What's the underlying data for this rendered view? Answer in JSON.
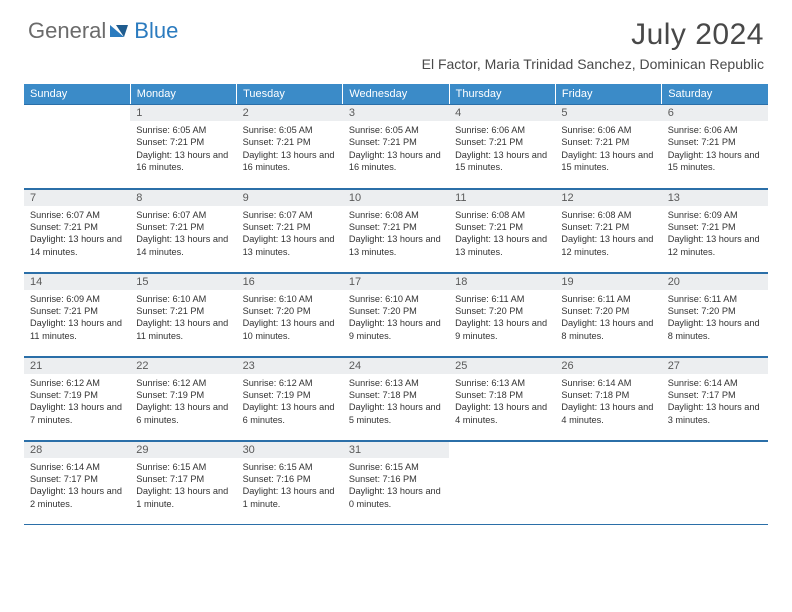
{
  "logo": {
    "text_general": "General",
    "text_blue": "Blue"
  },
  "title": "July 2024",
  "location": "El Factor, Maria Trinidad Sanchez, Dominican Republic",
  "colors": {
    "header_bg": "#3b8bc8",
    "header_text": "#ffffff",
    "daynum_bg": "#eceef0",
    "border": "#2b6fa8",
    "body_text": "#333333",
    "logo_gray": "#6b6b6b",
    "logo_blue": "#2b7bbf",
    "title_color": "#484848"
  },
  "typography": {
    "title_fontsize": 30,
    "location_fontsize": 14,
    "header_fontsize": 11,
    "daynum_fontsize": 11,
    "content_fontsize": 9.2
  },
  "day_headers": [
    "Sunday",
    "Monday",
    "Tuesday",
    "Wednesday",
    "Thursday",
    "Friday",
    "Saturday"
  ],
  "weeks": [
    [
      null,
      {
        "n": "1",
        "sunrise": "Sunrise: 6:05 AM",
        "sunset": "Sunset: 7:21 PM",
        "daylight": "Daylight: 13 hours and 16 minutes."
      },
      {
        "n": "2",
        "sunrise": "Sunrise: 6:05 AM",
        "sunset": "Sunset: 7:21 PM",
        "daylight": "Daylight: 13 hours and 16 minutes."
      },
      {
        "n": "3",
        "sunrise": "Sunrise: 6:05 AM",
        "sunset": "Sunset: 7:21 PM",
        "daylight": "Daylight: 13 hours and 16 minutes."
      },
      {
        "n": "4",
        "sunrise": "Sunrise: 6:06 AM",
        "sunset": "Sunset: 7:21 PM",
        "daylight": "Daylight: 13 hours and 15 minutes."
      },
      {
        "n": "5",
        "sunrise": "Sunrise: 6:06 AM",
        "sunset": "Sunset: 7:21 PM",
        "daylight": "Daylight: 13 hours and 15 minutes."
      },
      {
        "n": "6",
        "sunrise": "Sunrise: 6:06 AM",
        "sunset": "Sunset: 7:21 PM",
        "daylight": "Daylight: 13 hours and 15 minutes."
      }
    ],
    [
      {
        "n": "7",
        "sunrise": "Sunrise: 6:07 AM",
        "sunset": "Sunset: 7:21 PM",
        "daylight": "Daylight: 13 hours and 14 minutes."
      },
      {
        "n": "8",
        "sunrise": "Sunrise: 6:07 AM",
        "sunset": "Sunset: 7:21 PM",
        "daylight": "Daylight: 13 hours and 14 minutes."
      },
      {
        "n": "9",
        "sunrise": "Sunrise: 6:07 AM",
        "sunset": "Sunset: 7:21 PM",
        "daylight": "Daylight: 13 hours and 13 minutes."
      },
      {
        "n": "10",
        "sunrise": "Sunrise: 6:08 AM",
        "sunset": "Sunset: 7:21 PM",
        "daylight": "Daylight: 13 hours and 13 minutes."
      },
      {
        "n": "11",
        "sunrise": "Sunrise: 6:08 AM",
        "sunset": "Sunset: 7:21 PM",
        "daylight": "Daylight: 13 hours and 13 minutes."
      },
      {
        "n": "12",
        "sunrise": "Sunrise: 6:08 AM",
        "sunset": "Sunset: 7:21 PM",
        "daylight": "Daylight: 13 hours and 12 minutes."
      },
      {
        "n": "13",
        "sunrise": "Sunrise: 6:09 AM",
        "sunset": "Sunset: 7:21 PM",
        "daylight": "Daylight: 13 hours and 12 minutes."
      }
    ],
    [
      {
        "n": "14",
        "sunrise": "Sunrise: 6:09 AM",
        "sunset": "Sunset: 7:21 PM",
        "daylight": "Daylight: 13 hours and 11 minutes."
      },
      {
        "n": "15",
        "sunrise": "Sunrise: 6:10 AM",
        "sunset": "Sunset: 7:21 PM",
        "daylight": "Daylight: 13 hours and 11 minutes."
      },
      {
        "n": "16",
        "sunrise": "Sunrise: 6:10 AM",
        "sunset": "Sunset: 7:20 PM",
        "daylight": "Daylight: 13 hours and 10 minutes."
      },
      {
        "n": "17",
        "sunrise": "Sunrise: 6:10 AM",
        "sunset": "Sunset: 7:20 PM",
        "daylight": "Daylight: 13 hours and 9 minutes."
      },
      {
        "n": "18",
        "sunrise": "Sunrise: 6:11 AM",
        "sunset": "Sunset: 7:20 PM",
        "daylight": "Daylight: 13 hours and 9 minutes."
      },
      {
        "n": "19",
        "sunrise": "Sunrise: 6:11 AM",
        "sunset": "Sunset: 7:20 PM",
        "daylight": "Daylight: 13 hours and 8 minutes."
      },
      {
        "n": "20",
        "sunrise": "Sunrise: 6:11 AM",
        "sunset": "Sunset: 7:20 PM",
        "daylight": "Daylight: 13 hours and 8 minutes."
      }
    ],
    [
      {
        "n": "21",
        "sunrise": "Sunrise: 6:12 AM",
        "sunset": "Sunset: 7:19 PM",
        "daylight": "Daylight: 13 hours and 7 minutes."
      },
      {
        "n": "22",
        "sunrise": "Sunrise: 6:12 AM",
        "sunset": "Sunset: 7:19 PM",
        "daylight": "Daylight: 13 hours and 6 minutes."
      },
      {
        "n": "23",
        "sunrise": "Sunrise: 6:12 AM",
        "sunset": "Sunset: 7:19 PM",
        "daylight": "Daylight: 13 hours and 6 minutes."
      },
      {
        "n": "24",
        "sunrise": "Sunrise: 6:13 AM",
        "sunset": "Sunset: 7:18 PM",
        "daylight": "Daylight: 13 hours and 5 minutes."
      },
      {
        "n": "25",
        "sunrise": "Sunrise: 6:13 AM",
        "sunset": "Sunset: 7:18 PM",
        "daylight": "Daylight: 13 hours and 4 minutes."
      },
      {
        "n": "26",
        "sunrise": "Sunrise: 6:14 AM",
        "sunset": "Sunset: 7:18 PM",
        "daylight": "Daylight: 13 hours and 4 minutes."
      },
      {
        "n": "27",
        "sunrise": "Sunrise: 6:14 AM",
        "sunset": "Sunset: 7:17 PM",
        "daylight": "Daylight: 13 hours and 3 minutes."
      }
    ],
    [
      {
        "n": "28",
        "sunrise": "Sunrise: 6:14 AM",
        "sunset": "Sunset: 7:17 PM",
        "daylight": "Daylight: 13 hours and 2 minutes."
      },
      {
        "n": "29",
        "sunrise": "Sunrise: 6:15 AM",
        "sunset": "Sunset: 7:17 PM",
        "daylight": "Daylight: 13 hours and 1 minute."
      },
      {
        "n": "30",
        "sunrise": "Sunrise: 6:15 AM",
        "sunset": "Sunset: 7:16 PM",
        "daylight": "Daylight: 13 hours and 1 minute."
      },
      {
        "n": "31",
        "sunrise": "Sunrise: 6:15 AM",
        "sunset": "Sunset: 7:16 PM",
        "daylight": "Daylight: 13 hours and 0 minutes."
      },
      null,
      null,
      null
    ]
  ]
}
